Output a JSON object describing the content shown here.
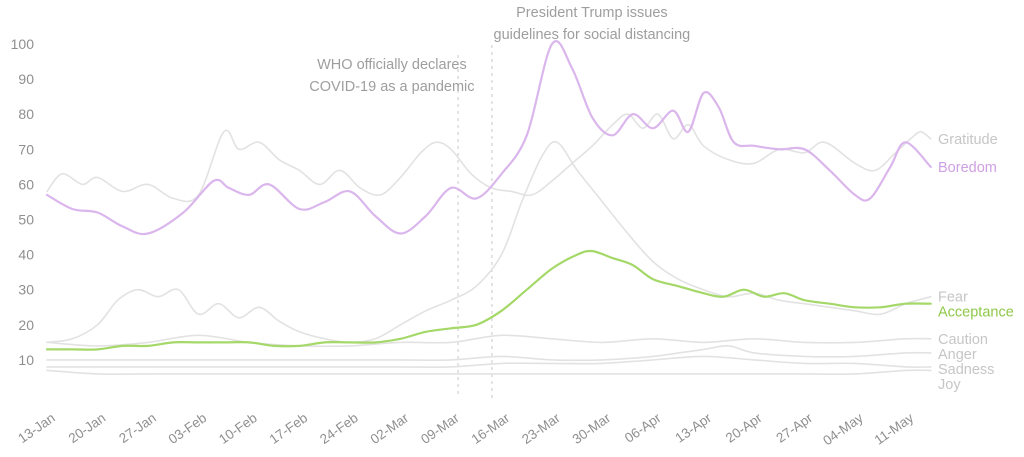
{
  "chart_data": {
    "type": "line",
    "title": "",
    "xlabel": "",
    "ylabel": "",
    "grid": false,
    "legend_position": "right-inline",
    "y_range": [
      0,
      100
    ],
    "y_tick_labels": [
      100,
      90,
      80,
      70,
      60,
      50,
      40,
      30,
      20,
      10
    ],
    "x_tick_labels": [
      "13-Jan",
      "20-Jan",
      "27-Jan",
      "03-Feb",
      "10-Feb",
      "17-Feb",
      "24-Feb",
      "02-Mar",
      "09-Mar",
      "16-Mar",
      "23-Mar",
      "30-Mar",
      "06-Apr",
      "13-Apr",
      "20-Apr",
      "27-Apr",
      "04-May",
      "11-May"
    ],
    "colors": {
      "gray_line": "#e2e2e2",
      "gray_label": "#c6c6c6",
      "boredom_line": "#dab6ec",
      "boredom_label": "#cfa0e3",
      "acceptance_line": "#a4d868",
      "acceptance_label": "#8fc948",
      "axis_text": "#8f8f8f",
      "annotation_text": "#9e9e9e",
      "annotation_line": "#c9c9c9"
    },
    "series": [
      {
        "name": "Gratitude",
        "color": "#e2e2e2",
        "label_color": "#c6c6c6",
        "width": 1.6,
        "highlight": false,
        "points": [
          [
            0,
            58
          ],
          [
            0.3,
            63
          ],
          [
            0.7,
            60
          ],
          [
            1,
            62
          ],
          [
            1.5,
            58
          ],
          [
            2,
            60
          ],
          [
            2.5,
            56
          ],
          [
            3,
            57
          ],
          [
            3.5,
            75
          ],
          [
            3.8,
            70
          ],
          [
            4.2,
            72
          ],
          [
            4.6,
            67
          ],
          [
            5,
            64
          ],
          [
            5.4,
            60
          ],
          [
            5.8,
            64
          ],
          [
            6.2,
            59
          ],
          [
            6.6,
            57
          ],
          [
            7,
            62
          ],
          [
            7.4,
            69
          ],
          [
            7.7,
            72
          ],
          [
            8,
            70
          ],
          [
            8.4,
            63
          ],
          [
            8.8,
            59
          ],
          [
            9.2,
            58
          ],
          [
            9.6,
            57
          ],
          [
            10,
            61
          ],
          [
            10.4,
            66
          ],
          [
            10.8,
            71
          ],
          [
            11.2,
            77
          ],
          [
            11.5,
            80
          ],
          [
            11.8,
            76
          ],
          [
            12.1,
            80
          ],
          [
            12.4,
            73
          ],
          [
            12.7,
            77
          ],
          [
            13,
            71
          ],
          [
            13.5,
            67
          ],
          [
            14,
            66
          ],
          [
            14.5,
            70
          ],
          [
            15,
            69
          ],
          [
            15.4,
            72
          ],
          [
            16,
            66
          ],
          [
            16.4,
            64
          ],
          [
            16.8,
            69
          ],
          [
            17.1,
            73
          ],
          [
            17.3,
            75
          ],
          [
            17.5,
            73
          ]
        ]
      },
      {
        "name": "Fear",
        "color": "#e2e2e2",
        "label_color": "#c6c6c6",
        "width": 1.6,
        "highlight": false,
        "points": [
          [
            0,
            15
          ],
          [
            0.5,
            16
          ],
          [
            1,
            20
          ],
          [
            1.4,
            27
          ],
          [
            1.8,
            30
          ],
          [
            2.2,
            28
          ],
          [
            2.6,
            30
          ],
          [
            3,
            23
          ],
          [
            3.4,
            26
          ],
          [
            3.8,
            22
          ],
          [
            4.2,
            25
          ],
          [
            4.6,
            21
          ],
          [
            5,
            18
          ],
          [
            5.5,
            16
          ],
          [
            6,
            15
          ],
          [
            6.5,
            16
          ],
          [
            7,
            20
          ],
          [
            7.5,
            24
          ],
          [
            8,
            27
          ],
          [
            8.5,
            31
          ],
          [
            9,
            40
          ],
          [
            9.4,
            55
          ],
          [
            9.8,
            68
          ],
          [
            10.1,
            72
          ],
          [
            10.5,
            64
          ],
          [
            11,
            55
          ],
          [
            11.5,
            46
          ],
          [
            12,
            38
          ],
          [
            12.5,
            33
          ],
          [
            13,
            30
          ],
          [
            13.5,
            28
          ],
          [
            14,
            29
          ],
          [
            14.5,
            27
          ],
          [
            15,
            26
          ],
          [
            15.5,
            25
          ],
          [
            16,
            24
          ],
          [
            16.5,
            23
          ],
          [
            17,
            26
          ],
          [
            17.5,
            28
          ]
        ]
      },
      {
        "name": "Caution",
        "color": "#e2e2e2",
        "label_color": "#c6c6c6",
        "width": 1.6,
        "highlight": false,
        "points": [
          [
            0,
            15
          ],
          [
            1,
            14
          ],
          [
            2,
            15
          ],
          [
            3,
            17
          ],
          [
            4,
            15
          ],
          [
            5,
            14
          ],
          [
            6,
            14
          ],
          [
            7,
            15
          ],
          [
            8,
            15
          ],
          [
            9,
            17
          ],
          [
            10,
            16
          ],
          [
            11,
            15
          ],
          [
            12,
            16
          ],
          [
            13,
            15
          ],
          [
            14,
            16
          ],
          [
            15,
            15
          ],
          [
            16,
            15
          ],
          [
            17,
            16
          ],
          [
            17.5,
            16
          ]
        ]
      },
      {
        "name": "Anger",
        "color": "#e2e2e2",
        "label_color": "#c6c6c6",
        "width": 1.6,
        "highlight": false,
        "points": [
          [
            0,
            10
          ],
          [
            1,
            10
          ],
          [
            2,
            10
          ],
          [
            3,
            10
          ],
          [
            4,
            10
          ],
          [
            5,
            10
          ],
          [
            6,
            10
          ],
          [
            7,
            10
          ],
          [
            8,
            10
          ],
          [
            9,
            11
          ],
          [
            10,
            10
          ],
          [
            11,
            10
          ],
          [
            12,
            11
          ],
          [
            13,
            13
          ],
          [
            13.5,
            14
          ],
          [
            14,
            12
          ],
          [
            15,
            11
          ],
          [
            16,
            11
          ],
          [
            17,
            12
          ],
          [
            17.5,
            12
          ]
        ]
      },
      {
        "name": "Sadness",
        "color": "#e2e2e2",
        "label_color": "#c6c6c6",
        "width": 1.6,
        "highlight": false,
        "points": [
          [
            0,
            8
          ],
          [
            1,
            8
          ],
          [
            2,
            8
          ],
          [
            3,
            8
          ],
          [
            4,
            8
          ],
          [
            5,
            8
          ],
          [
            6,
            8
          ],
          [
            7,
            8
          ],
          [
            8,
            8
          ],
          [
            9,
            9
          ],
          [
            10,
            9
          ],
          [
            11,
            9
          ],
          [
            12,
            10
          ],
          [
            13,
            11
          ],
          [
            14,
            10
          ],
          [
            15,
            9
          ],
          [
            16,
            9
          ],
          [
            17,
            8
          ],
          [
            17.5,
            8
          ]
        ]
      },
      {
        "name": "Joy",
        "color": "#e2e2e2",
        "label_color": "#c6c6c6",
        "width": 1.6,
        "highlight": false,
        "points": [
          [
            0,
            7
          ],
          [
            1,
            6
          ],
          [
            2,
            6
          ],
          [
            3,
            6
          ],
          [
            4,
            6
          ],
          [
            5,
            6
          ],
          [
            6,
            6
          ],
          [
            7,
            6
          ],
          [
            8,
            6
          ],
          [
            9,
            6
          ],
          [
            10,
            6
          ],
          [
            11,
            6
          ],
          [
            12,
            6
          ],
          [
            13,
            6
          ],
          [
            14,
            6
          ],
          [
            15,
            6
          ],
          [
            16,
            6
          ],
          [
            17,
            7
          ],
          [
            17.5,
            7
          ]
        ]
      },
      {
        "name": "Acceptance",
        "color": "#a4d868",
        "label_color": "#8fc948",
        "width": 2.2,
        "highlight": true,
        "points": [
          [
            0,
            13
          ],
          [
            0.5,
            13
          ],
          [
            1,
            13
          ],
          [
            1.5,
            14
          ],
          [
            2,
            14
          ],
          [
            2.5,
            15
          ],
          [
            3,
            15
          ],
          [
            3.5,
            15
          ],
          [
            4,
            15
          ],
          [
            4.5,
            14
          ],
          [
            5,
            14
          ],
          [
            5.5,
            15
          ],
          [
            6,
            15
          ],
          [
            6.5,
            15
          ],
          [
            7,
            16
          ],
          [
            7.5,
            18
          ],
          [
            8,
            19
          ],
          [
            8.5,
            20
          ],
          [
            9,
            24
          ],
          [
            9.5,
            30
          ],
          [
            10,
            36
          ],
          [
            10.5,
            40
          ],
          [
            10.8,
            41
          ],
          [
            11.2,
            39
          ],
          [
            11.6,
            37
          ],
          [
            12,
            33
          ],
          [
            12.5,
            31
          ],
          [
            13,
            29
          ],
          [
            13.4,
            28
          ],
          [
            13.8,
            30
          ],
          [
            14.2,
            28
          ],
          [
            14.6,
            29
          ],
          [
            15,
            27
          ],
          [
            15.5,
            26
          ],
          [
            16,
            25
          ],
          [
            16.5,
            25
          ],
          [
            17,
            26
          ],
          [
            17.5,
            26
          ]
        ]
      },
      {
        "name": "Boredom",
        "color": "#dab6ec",
        "label_color": "#cfa0e3",
        "width": 2.2,
        "highlight": true,
        "points": [
          [
            0,
            57
          ],
          [
            0.5,
            53
          ],
          [
            1,
            52
          ],
          [
            1.5,
            48
          ],
          [
            2,
            46
          ],
          [
            2.7,
            52
          ],
          [
            3.3,
            61
          ],
          [
            3.6,
            59
          ],
          [
            4,
            57
          ],
          [
            4.4,
            60
          ],
          [
            5,
            53
          ],
          [
            5.5,
            55
          ],
          [
            6,
            58
          ],
          [
            6.5,
            51
          ],
          [
            7,
            46
          ],
          [
            7.5,
            51
          ],
          [
            8,
            59
          ],
          [
            8.5,
            56
          ],
          [
            9,
            63
          ],
          [
            9.5,
            74
          ],
          [
            10,
            100
          ],
          [
            10.4,
            93
          ],
          [
            10.8,
            79
          ],
          [
            11.2,
            74
          ],
          [
            11.6,
            80
          ],
          [
            12,
            76
          ],
          [
            12.4,
            81
          ],
          [
            12.7,
            75
          ],
          [
            13,
            86
          ],
          [
            13.3,
            82
          ],
          [
            13.6,
            72
          ],
          [
            14,
            71
          ],
          [
            14.5,
            70
          ],
          [
            15,
            70
          ],
          [
            15.5,
            64
          ],
          [
            16,
            57
          ],
          [
            16.3,
            56
          ],
          [
            16.7,
            65
          ],
          [
            17,
            72
          ],
          [
            17.5,
            65
          ]
        ]
      }
    ],
    "annotations": [
      {
        "id": "who",
        "lines": [
          "WHO officially declares",
          "COVID-19 as a pandemic"
        ],
        "text_center_index": 6.83,
        "text_top_y": 56,
        "line_index": 8.14,
        "line_top_y": 55
      },
      {
        "id": "trump",
        "lines": [
          "President Trump issues",
          "guidelines for social distancing"
        ],
        "text_center_index": 10.79,
        "text_top_y": 4,
        "line_index": 8.81,
        "line_top_y": 45
      }
    ]
  }
}
